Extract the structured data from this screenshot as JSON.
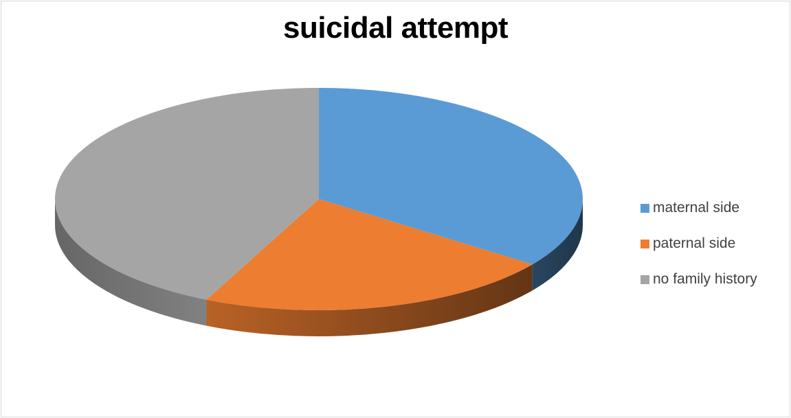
{
  "chart_data": {
    "type": "pie",
    "title": "suicidal attempt",
    "categories": [
      "maternal side",
      "paternal side",
      "no family history"
    ],
    "values": [
      35,
      22,
      43
    ],
    "colors": [
      "#5b9bd5",
      "#ed7d31",
      "#a5a5a5"
    ],
    "style": "3d",
    "legend": "right"
  }
}
